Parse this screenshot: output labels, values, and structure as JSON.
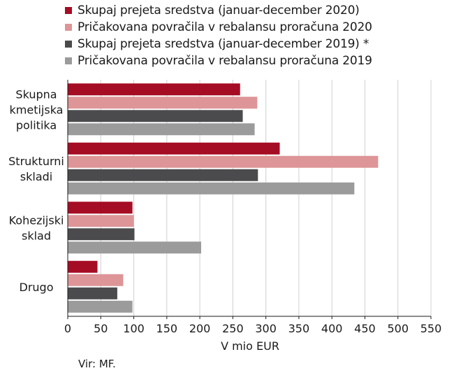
{
  "chart_data": {
    "type": "bar",
    "orientation": "horizontal",
    "categories": [
      [
        "Skupna",
        "kmetijska",
        "politika"
      ],
      [
        "Strukturni",
        "skladi"
      ],
      [
        "Kohezijski",
        "sklad"
      ],
      [
        "Drugo"
      ]
    ],
    "series": [
      {
        "name": "Skupaj prejeta sredstva (januar-december 2020)",
        "color": "#a50d24",
        "values": [
          261,
          321,
          98,
          45
        ]
      },
      {
        "name": "Pričakovana povračila v rebalansu proračuna 2020",
        "color": "#dd9597",
        "values": [
          287,
          470,
          100,
          84
        ]
      },
      {
        "name": "Skupaj prejeta sredstva (januar-december 2019) *",
        "color": "#4b4b4d",
        "values": [
          265,
          288,
          101,
          75
        ]
      },
      {
        "name": "Pričakovana povračila v rebalansu proračuna 2019",
        "color": "#9b9b9b",
        "values": [
          283,
          434,
          202,
          98
        ]
      }
    ],
    "xlabel": "V mio EUR",
    "xlim": [
      0,
      550
    ],
    "xticks": [
      "0",
      "50",
      "100",
      "150",
      "200",
      "250",
      "300",
      "350",
      "400",
      "450",
      "500",
      "550"
    ],
    "grid": true,
    "legend": "top"
  },
  "source_note": "Vir: MF."
}
